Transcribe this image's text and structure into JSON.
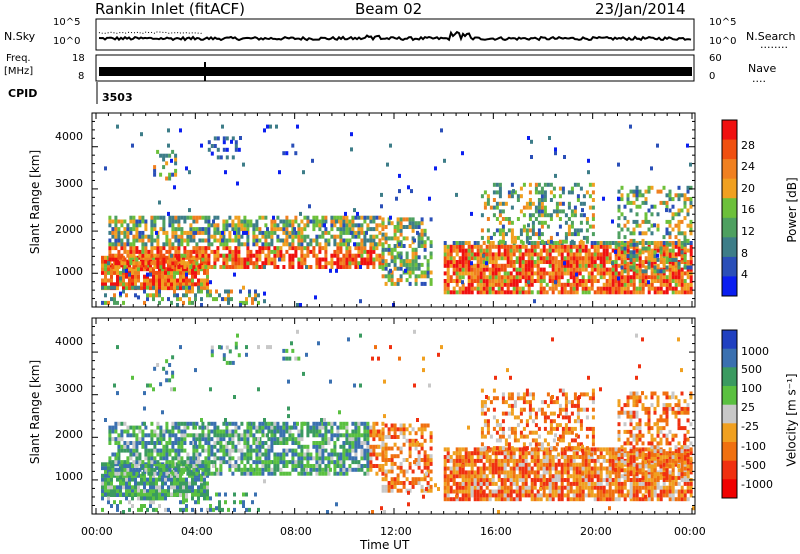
{
  "header": {
    "station": "Rankin Inlet (fitACF)",
    "beam": "Beam 02",
    "date": "23/Jan/2014"
  },
  "top_panels": {
    "noise": {
      "left_label": "N.Sky",
      "right_label": "N.Search",
      "right_key": "........",
      "left_ticks": [
        "10^5",
        "10^0"
      ],
      "right_ticks": [
        "10^5",
        "10^0"
      ]
    },
    "freq": {
      "left_label_1": "Freq.",
      "left_label_2": "[MHz]",
      "right_label": "Nave",
      "right_key": "....",
      "left_ticks": [
        "18",
        "8"
      ],
      "right_ticks": [
        "60",
        "0"
      ]
    },
    "cpid": {
      "label": "CPID",
      "value": "3503"
    }
  },
  "chart_data": [
    {
      "type": "heatmap",
      "title": "",
      "ylabel": "Slant Range [km]",
      "xlabel": "Time UT",
      "ylim": [
        200,
        4600
      ],
      "y_ticks": [
        "4000",
        "3000",
        "2000",
        "1000"
      ],
      "x_ticks": [
        "00:00",
        "04:00",
        "08:00",
        "12:00",
        "16:00",
        "20:00",
        "00:00"
      ],
      "colorbar": {
        "label": "Power [dB]",
        "ticks": [
          "28",
          "24",
          "20",
          "16",
          "12",
          "8",
          "4"
        ],
        "colors": [
          "#0a1ef0",
          "#2a4fb8",
          "#3d7d88",
          "#4ea060",
          "#6cc03a",
          "#f0a020",
          "#f08020",
          "#f05010",
          "#f01010"
        ]
      }
    },
    {
      "type": "heatmap",
      "title": "",
      "ylabel": "Slant Range [km]",
      "xlabel": "Time UT",
      "ylim": [
        200,
        4600
      ],
      "y_ticks": [
        "4000",
        "3000",
        "2000",
        "1000"
      ],
      "x_ticks": [
        "00:00",
        "04:00",
        "08:00",
        "12:00",
        "16:00",
        "20:00",
        "00:00"
      ],
      "colorbar": {
        "label": "Velocity [m s⁻¹]",
        "ticks": [
          "1000",
          "500",
          "100",
          "25",
          "-25",
          "-100",
          "-500",
          "-1000"
        ],
        "colors": [
          "#2040c0",
          "#3a70b0",
          "#3a9a60",
          "#5ac040",
          "#c8c8c8",
          "#f0a020",
          "#f07010",
          "#f03010",
          "#f00000"
        ]
      }
    }
  ],
  "time_axis_label": "Time UT"
}
